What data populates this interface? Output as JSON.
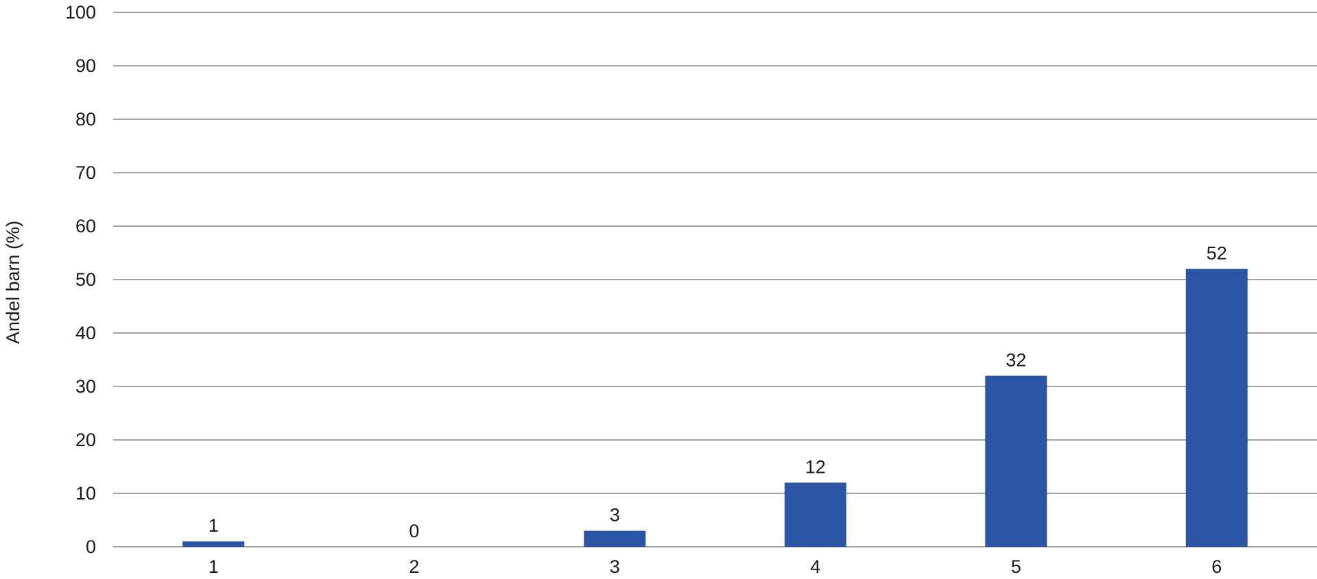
{
  "chart_data": {
    "type": "bar",
    "categories": [
      "1",
      "2",
      "3",
      "4",
      "5",
      "6"
    ],
    "values": [
      1,
      0,
      3,
      12,
      32,
      52
    ],
    "data_labels": [
      "1",
      "0",
      "3",
      "12",
      "32",
      "52"
    ],
    "ylabel": "Andel barn (%)",
    "ylim": [
      0,
      100
    ],
    "yticks": [
      0,
      10,
      20,
      30,
      40,
      50,
      60,
      70,
      80,
      90,
      100
    ],
    "grid": true,
    "bar_color": "#2b55a4"
  }
}
